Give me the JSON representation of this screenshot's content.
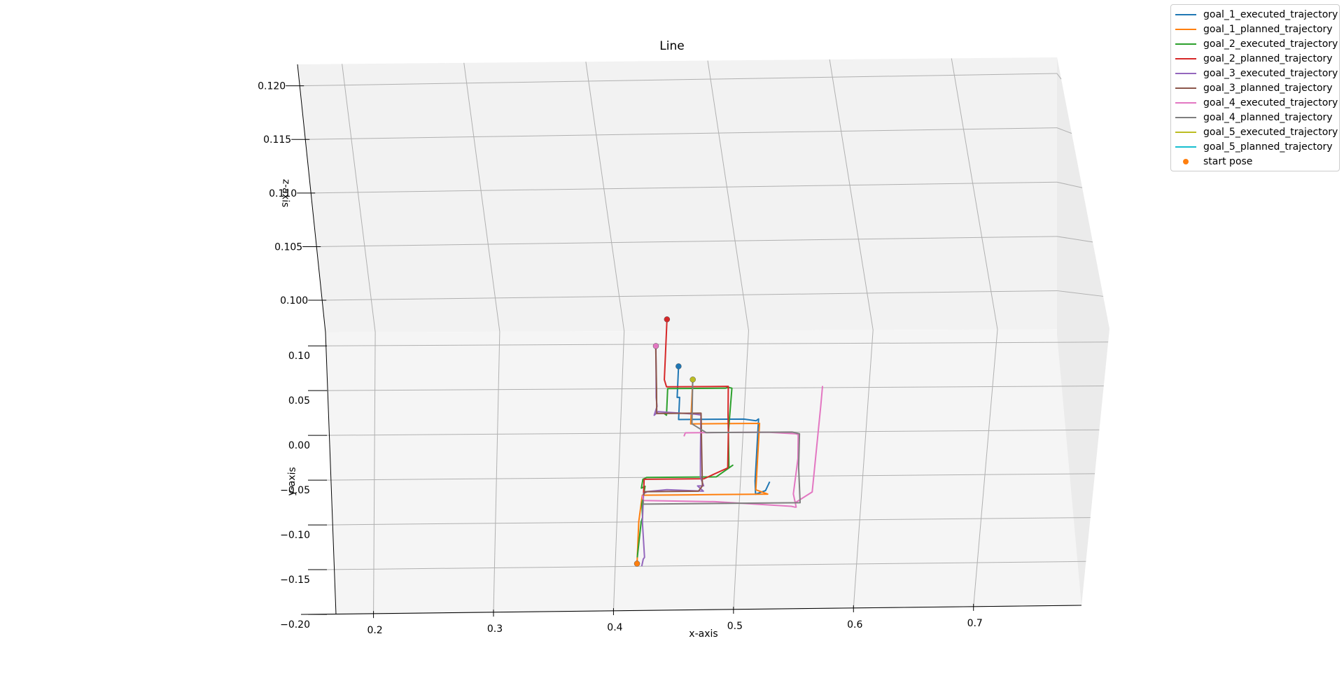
{
  "chart_data": {
    "type": "line",
    "projection": "3d",
    "title": "Line",
    "xlabel": "x-axis",
    "ylabel": "y-axis",
    "zlabel": "z-axis",
    "x_ticks": [
      "0.2",
      "0.3",
      "0.4",
      "0.5",
      "0.6",
      "0.7"
    ],
    "y_ticks": [
      "0.10",
      "0.05",
      "0.00",
      "−0.05",
      "−0.10",
      "−0.15",
      "−0.20"
    ],
    "z_ticks": [
      "0.120",
      "0.115",
      "0.110",
      "0.105",
      "0.100"
    ],
    "xlim": [
      0.16,
      0.79
    ],
    "ylim": [
      -0.2,
      0.115
    ],
    "zlim": [
      0.097,
      0.122
    ],
    "grid": true,
    "legend_position": "top-right",
    "series": [
      {
        "name": "goal_1_executed_trajectory",
        "color": "#1f77b4",
        "x": [
          0.445,
          0.445,
          0.447,
          0.447,
          0.5,
          0.51,
          0.512,
          0.512,
          0.512,
          0.513,
          0.521,
          0.524
        ],
        "y": [
          0.073,
          0.04,
          0.04,
          0.015,
          0.015,
          0.013,
          0.015,
          0.0,
          -0.055,
          -0.07,
          -0.066,
          -0.056
        ]
      },
      {
        "name": "goal_1_planned_trajectory",
        "color": "#ff7f0e",
        "x": [
          0.457,
          0.457,
          0.513,
          0.513,
          0.513,
          0.523,
          0.46,
          0.42,
          0.418,
          0.418
        ],
        "y": [
          0.058,
          0.01,
          0.01,
          -0.01,
          -0.065,
          -0.07,
          -0.07,
          -0.07,
          -0.1,
          -0.145
        ]
      },
      {
        "name": "goal_2_executed_trajectory",
        "color": "#2ca02c",
        "x": [
          0.435,
          0.437,
          0.437,
          0.48,
          0.484,
          0.486,
          0.489,
          0.488,
          0.49,
          0.493,
          0.48,
          0.423,
          0.42,
          0.419,
          0.422,
          0.42,
          0.421,
          0.42,
          0.419,
          0.418
        ],
        "y": [
          0.022,
          0.02,
          0.05,
          0.05,
          0.05,
          0.051,
          0.05,
          0.0,
          -0.04,
          -0.037,
          -0.05,
          -0.05,
          -0.052,
          -0.062,
          -0.06,
          -0.08,
          -0.095,
          -0.1,
          -0.12,
          -0.14
        ]
      },
      {
        "name": "goal_2_planned_trajectory",
        "color": "#d62728",
        "x": [
          0.434,
          0.434,
          0.436,
          0.486,
          0.487,
          0.488,
          0.489,
          0.47,
          0.421,
          0.421
        ],
        "y": [
          0.125,
          0.06,
          0.052,
          0.052,
          0.02,
          0.0,
          -0.04,
          -0.052,
          -0.052,
          -0.068
        ]
      },
      {
        "name": "goal_3_executed_trajectory",
        "color": "#9467bd",
        "x": [
          0.426,
          0.427,
          0.428,
          0.429,
          0.427,
          0.43,
          0.46,
          0.465,
          0.466,
          0.467,
          0.47,
          0.465,
          0.47,
          0.44,
          0.424,
          0.421,
          0.421,
          0.424,
          0.423,
          0.422
        ],
        "y": [
          0.098,
          0.07,
          0.04,
          0.03,
          0.02,
          0.024,
          0.021,
          0.02,
          -0.02,
          -0.05,
          -0.06,
          -0.06,
          -0.066,
          -0.064,
          -0.066,
          -0.068,
          -0.1,
          -0.14,
          -0.142,
          -0.15
        ]
      },
      {
        "name": "goal_3_planned_trajectory",
        "color": "#8c564b",
        "x": [
          0.426,
          0.428,
          0.429,
          0.465,
          0.467,
          0.469,
          0.466,
          0.422,
          0.421
        ],
        "y": [
          0.095,
          0.05,
          0.022,
          0.022,
          -0.02,
          -0.06,
          -0.066,
          -0.066,
          -0.07
        ]
      },
      {
        "name": "goal_4_executed_trajectory",
        "color": "#e377c2",
        "x": [
          0.452,
          0.453,
          0.46,
          0.52,
          0.543,
          0.545,
          0.546,
          0.544,
          0.547,
          0.546,
          0.543,
          0.48,
          0.421,
          0.42
        ],
        "y": [
          -0.004,
          0.0,
          0.0,
          0.0,
          -0.002,
          -0.003,
          -0.03,
          -0.07,
          -0.085,
          -0.085,
          -0.084,
          -0.078,
          -0.076,
          -0.07
        ],
        "z_rise": {
          "x": [
            0.546,
            0.56,
            0.565,
            0.566
          ],
          "y": [
            -0.08,
            -0.08,
            -0.03,
            -0.02
          ],
          "z": [
            0.097,
            0.098,
            0.102,
            0.103
          ]
        }
      },
      {
        "name": "goal_4_planned_trajectory",
        "color": "#7f7f7f",
        "x": [
          0.457,
          0.458,
          0.47,
          0.54,
          0.546,
          0.547,
          0.55,
          0.5,
          0.421,
          0.421
        ],
        "y": [
          0.058,
          0.01,
          0.0,
          0.0,
          -0.002,
          -0.04,
          -0.08,
          -0.08,
          -0.08,
          -0.075
        ]
      },
      {
        "name": "goal_5_executed_trajectory",
        "color": "#bcbd22",
        "x": [],
        "y": []
      },
      {
        "name": "goal_5_planned_trajectory",
        "color": "#17becf",
        "x": [],
        "y": []
      }
    ],
    "markers": [
      {
        "x": 0.418,
        "y": -0.147,
        "color": "#ff7f0e"
      },
      {
        "x": 0.434,
        "y": 0.128,
        "color": "#d62728"
      },
      {
        "x": 0.426,
        "y": 0.098,
        "color": "#e377c2"
      },
      {
        "x": 0.445,
        "y": 0.075,
        "color": "#1f77b4"
      },
      {
        "x": 0.457,
        "y": 0.06,
        "color": "#bcbd22"
      }
    ],
    "scatter_legend": {
      "name": "start pose",
      "color": "#ff7f0e"
    }
  }
}
